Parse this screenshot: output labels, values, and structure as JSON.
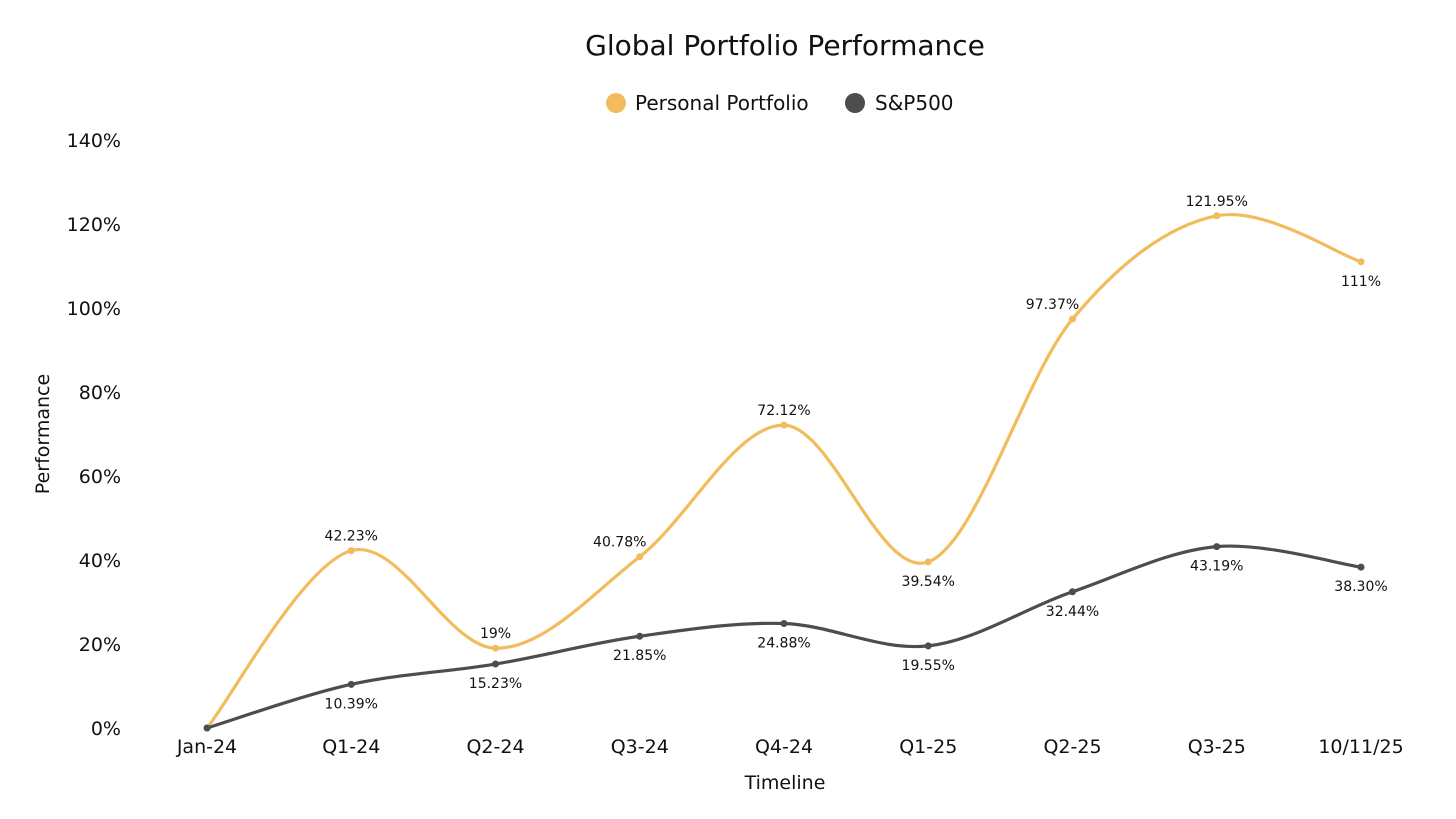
{
  "chart_data": {
    "type": "line",
    "title": "Global Portfolio Performance",
    "xlabel": "Timeline",
    "ylabel": "Performance",
    "categories": [
      "Jan-24",
      "Q1-24",
      "Q2-24",
      "Q3-24",
      "Q4-24",
      "Q1-25",
      "Q2-25",
      "Q3-25",
      "10/11/25"
    ],
    "ylim": [
      0,
      140
    ],
    "yticks": [
      0,
      20,
      40,
      60,
      80,
      100,
      120,
      140
    ],
    "ytick_labels": [
      "0%",
      "20%",
      "40%",
      "60%",
      "80%",
      "100%",
      "120%",
      "140%"
    ],
    "grid": false,
    "legend_position": "top-center",
    "series": [
      {
        "name": "Personal Portfolio",
        "color": "#F2BC5C",
        "values": [
          0,
          42.23,
          19,
          40.78,
          72.12,
          39.54,
          97.37,
          121.95,
          111
        ],
        "labels": [
          "",
          "42.23%",
          "19%",
          "40.78%",
          "72.12%",
          "39.54%",
          "97.37%",
          "121.95%",
          "111%"
        ]
      },
      {
        "name": "S&P500",
        "color": "#4D4D4D",
        "values": [
          0,
          10.39,
          15.23,
          21.85,
          24.88,
          19.55,
          32.44,
          43.19,
          38.3
        ],
        "labels": [
          "",
          "10.39%",
          "15.23%",
          "21.85%",
          "24.88%",
          "19.55%",
          "32.44%",
          "43.19%",
          "38.30%"
        ]
      }
    ]
  }
}
